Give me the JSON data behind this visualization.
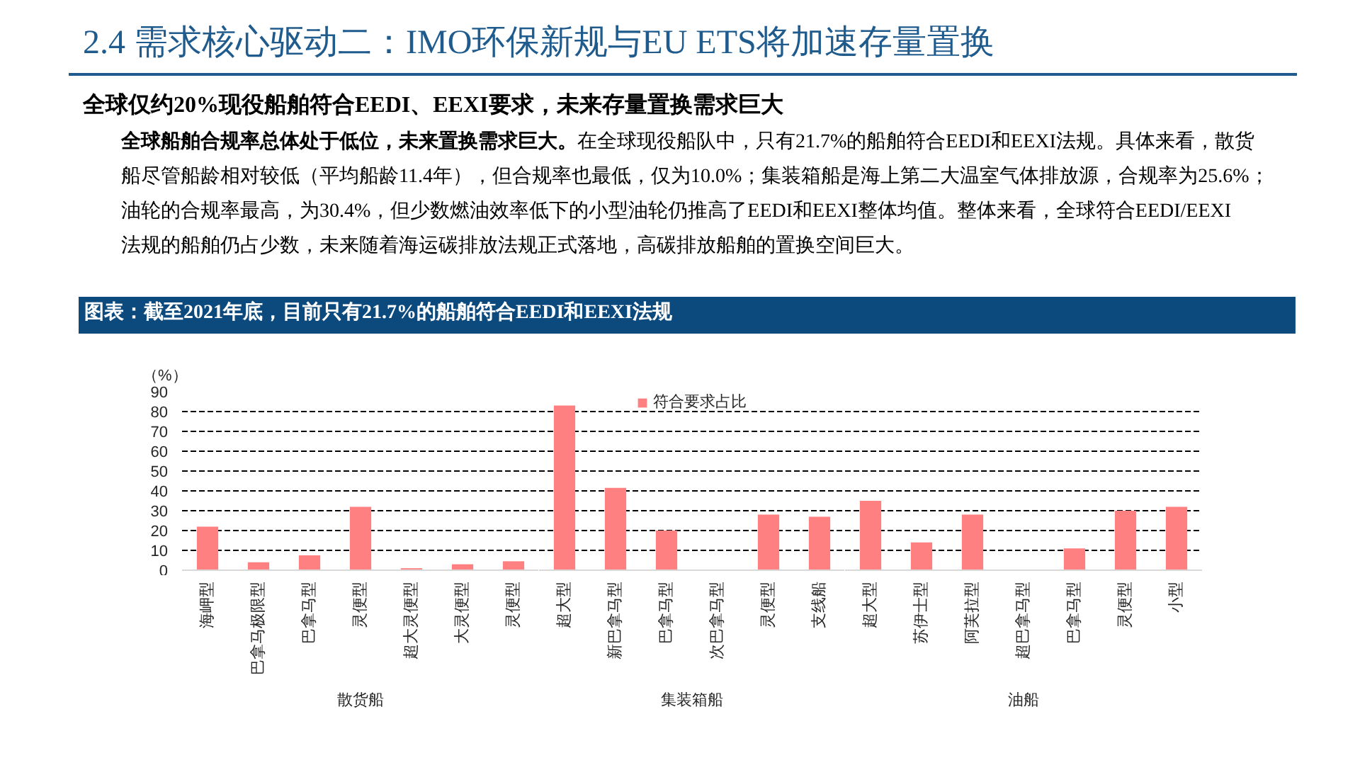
{
  "chart_data": [
    {
      "type": "bar",
      "title": "2.4 需求核心驱动二：IMO环保新规与EU ETS将加速存量置换",
      "subtitle": "全球仅约20%现役船舶符合EEDI、EEXI要求，未来存量置换需求巨大",
      "annotations": [
        "全球船舶合规率总体处于低位，未来置换需求巨大。在全球现役船队中，只有21.7%的船舶符合EEDI和EEXI法规。具体来看，散货船尽管船龄相对较低（平均船龄11.4年），但合规率也最低，仅为10.0%；集装箱船是海上第二大温室气体排放源，合规率为25.6%；油轮的合规率最高，为30.4%，但少数燃油效率低下的小型油轮仍推高了EEDI和EEXI整体均值。整体来看，全球符合EEDI/EEXI法规的船舶仍占少数，未来随着海运碳排放法规正式落地，高碳排放船舶的置换空间巨大。",
        "图表：截至2021年底，目前只有21.7%的船舶符合EEDI和EEXI法规"
      ],
      "xlabel": "散货船",
      "ylabel": "（%）",
      "categories": [
        "海岬型",
        "巴拿马极限型",
        "巴拿马型",
        "灵便型",
        "超大灵便型",
        "大灵便型",
        "灵便型"
      ],
      "series": [
        {
          "color": "#ff8080",
          "values": [
            22,
            4,
            7.5,
            32,
            1,
            3,
            4.5
          ]
        }
      ],
      "ylim": [
        0,
        90
      ],
      "yticks": [
        0,
        10,
        20,
        30,
        40,
        50,
        60,
        70,
        80,
        90
      ],
      "grid": "y"
    },
    {
      "type": "bar",
      "xlabel": "集装箱船",
      "categories": [
        "超大型",
        "新巴拿马型",
        "巴拿马型",
        "次巴拿马型",
        "灵便型",
        "支线船"
      ],
      "series": [
        {
          "name": "符合要求占比",
          "color": "#ff8080",
          "values": [
            83,
            41.5,
            20,
            0,
            28,
            27
          ]
        }
      ],
      "ylim": [
        0,
        90
      ],
      "yticks": [
        0,
        10,
        20,
        30,
        40,
        50,
        60,
        70,
        80,
        90
      ],
      "grid": "y",
      "legend": "top",
      "tick_labels": "x"
    },
    {
      "type": "bar",
      "xlabel": "油船",
      "categories": [
        "超大型",
        "苏伊士型",
        "阿芙拉型",
        "超巴拿马型",
        "巴拿马型",
        "灵便型",
        "小型"
      ],
      "series": [
        {
          "color": "#ff8080",
          "values": [
            35,
            14,
            28,
            0,
            11,
            30,
            32
          ]
        }
      ],
      "ylim": [
        0,
        90
      ],
      "yticks": [
        0,
        10,
        20,
        30,
        40,
        50,
        60,
        70,
        80,
        90
      ],
      "grid": "y",
      "tick_labels": "x"
    }
  ]
}
